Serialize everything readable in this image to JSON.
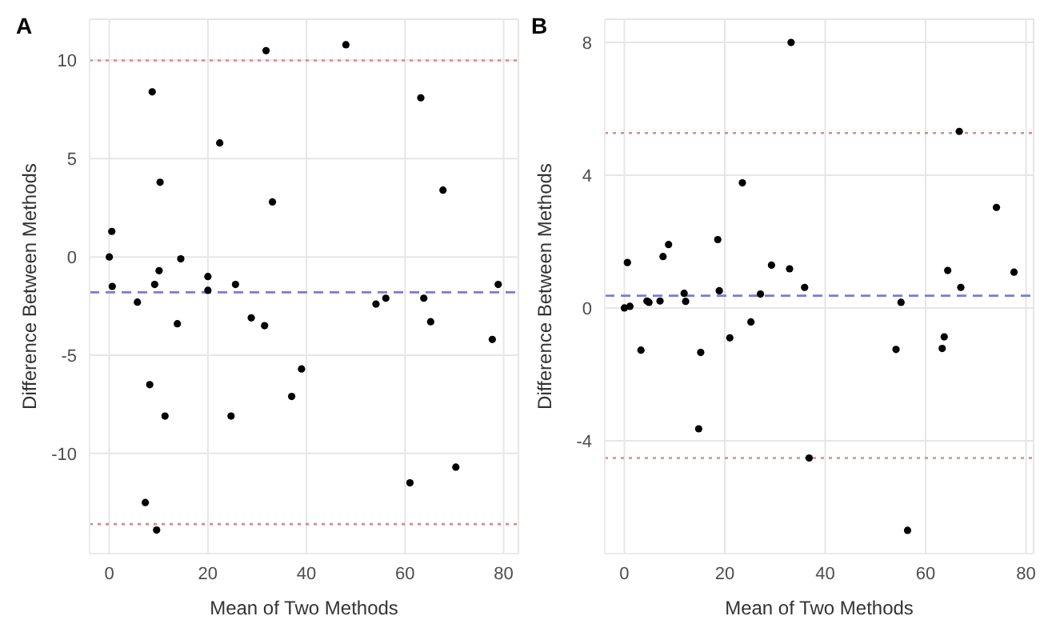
{
  "chart_data": [
    {
      "type": "scatter",
      "title": "A",
      "xlabel": "Mean of Two Methods",
      "ylabel": "Difference Between Methods",
      "marker": "circle",
      "grid": true,
      "legend": false,
      "x": [
        0,
        0.5,
        0.6,
        5.7,
        8.7,
        9.2,
        10.1,
        10.3,
        14.5,
        20.0,
        20.0,
        22.4,
        25.6,
        31.8,
        33.1,
        48.0,
        54.1,
        56.1,
        63.2,
        63.8,
        67.7,
        78.9,
        13.8,
        28.8,
        31.5,
        65.2,
        77.7,
        8.2,
        11.3,
        24.7,
        37.0,
        39.0,
        61.0,
        70.3,
        7.3,
        9.6
      ],
      "series": [
        {
          "color": "#000000",
          "values": [
            0,
            1.3,
            -1.5,
            -2.3,
            8.4,
            -1.4,
            -0.7,
            3.8,
            -0.1,
            -1.0,
            -1.7,
            5.8,
            -1.4,
            10.5,
            2.8,
            10.8,
            -2.4,
            -2.1,
            8.1,
            -2.1,
            3.4,
            -1.4,
            -3.4,
            -3.1,
            -3.5,
            -3.3,
            -4.2,
            -6.5,
            -8.1,
            -8.1,
            -7.1,
            -5.7,
            -11.5,
            -10.7,
            -12.5,
            -13.9
          ]
        }
      ],
      "xlim": [
        -4,
        83
      ],
      "xticks": [
        0,
        20,
        40,
        60,
        80
      ],
      "ylim": [
        -15.1,
        12.1
      ],
      "yticks": [
        -10,
        -5,
        0,
        5,
        10
      ],
      "ref_lines": [
        {
          "axis": "y",
          "value": -1.8,
          "color": "#7b7bdb",
          "line_style": "dashed"
        },
        {
          "axis": "y",
          "value": 10.0,
          "color": "#d98a8a",
          "line_style": "dotted"
        },
        {
          "axis": "y",
          "value": -13.6,
          "color": "#d98a8a",
          "line_style": "dotted"
        }
      ]
    },
    {
      "type": "scatter",
      "title": "B",
      "xlabel": "Mean of Two Methods",
      "ylabel": "Difference Between Methods",
      "marker": "circle",
      "grid": true,
      "legend": false,
      "x": [
        0,
        1.1,
        0.6,
        4.5,
        4.9,
        7.1,
        7.7,
        8.8,
        11.9,
        12.2,
        18.6,
        18.9,
        23.5,
        27.1,
        29.3,
        32.9,
        33.2,
        35.9,
        55.1,
        64.4,
        66.7,
        67.0,
        74.1,
        77.6,
        3.3,
        15.2,
        21.0,
        25.2,
        54.1,
        63.3,
        63.7,
        14.8,
        36.8,
        56.4
      ],
      "series": [
        {
          "color": "#000000",
          "values": [
            0,
            0.05,
            1.37,
            0.21,
            0.17,
            0.21,
            1.55,
            1.91,
            0.44,
            0.2,
            2.06,
            0.52,
            3.77,
            0.42,
            1.29,
            1.18,
            8.0,
            0.62,
            0.17,
            1.13,
            5.32,
            0.62,
            3.03,
            1.08,
            -1.27,
            -1.34,
            -0.9,
            -0.42,
            -1.25,
            -1.22,
            -0.87,
            -3.64,
            -4.52,
            -6.7
          ]
        }
      ],
      "xlim": [
        -3.9,
        81.5
      ],
      "xticks": [
        0,
        20,
        40,
        60,
        80
      ],
      "ylim": [
        -7.4,
        8.7
      ],
      "yticks": [
        -4,
        0,
        4,
        8
      ],
      "ref_lines": [
        {
          "axis": "y",
          "value": 0.37,
          "color": "#7b7bdb",
          "line_style": "dashed"
        },
        {
          "axis": "y",
          "value": 5.27,
          "color": "#d98a8a",
          "line_style": "dotted"
        },
        {
          "axis": "y",
          "value": -4.52,
          "color": "#d98a8a",
          "line_style": "dotted"
        }
      ]
    }
  ]
}
